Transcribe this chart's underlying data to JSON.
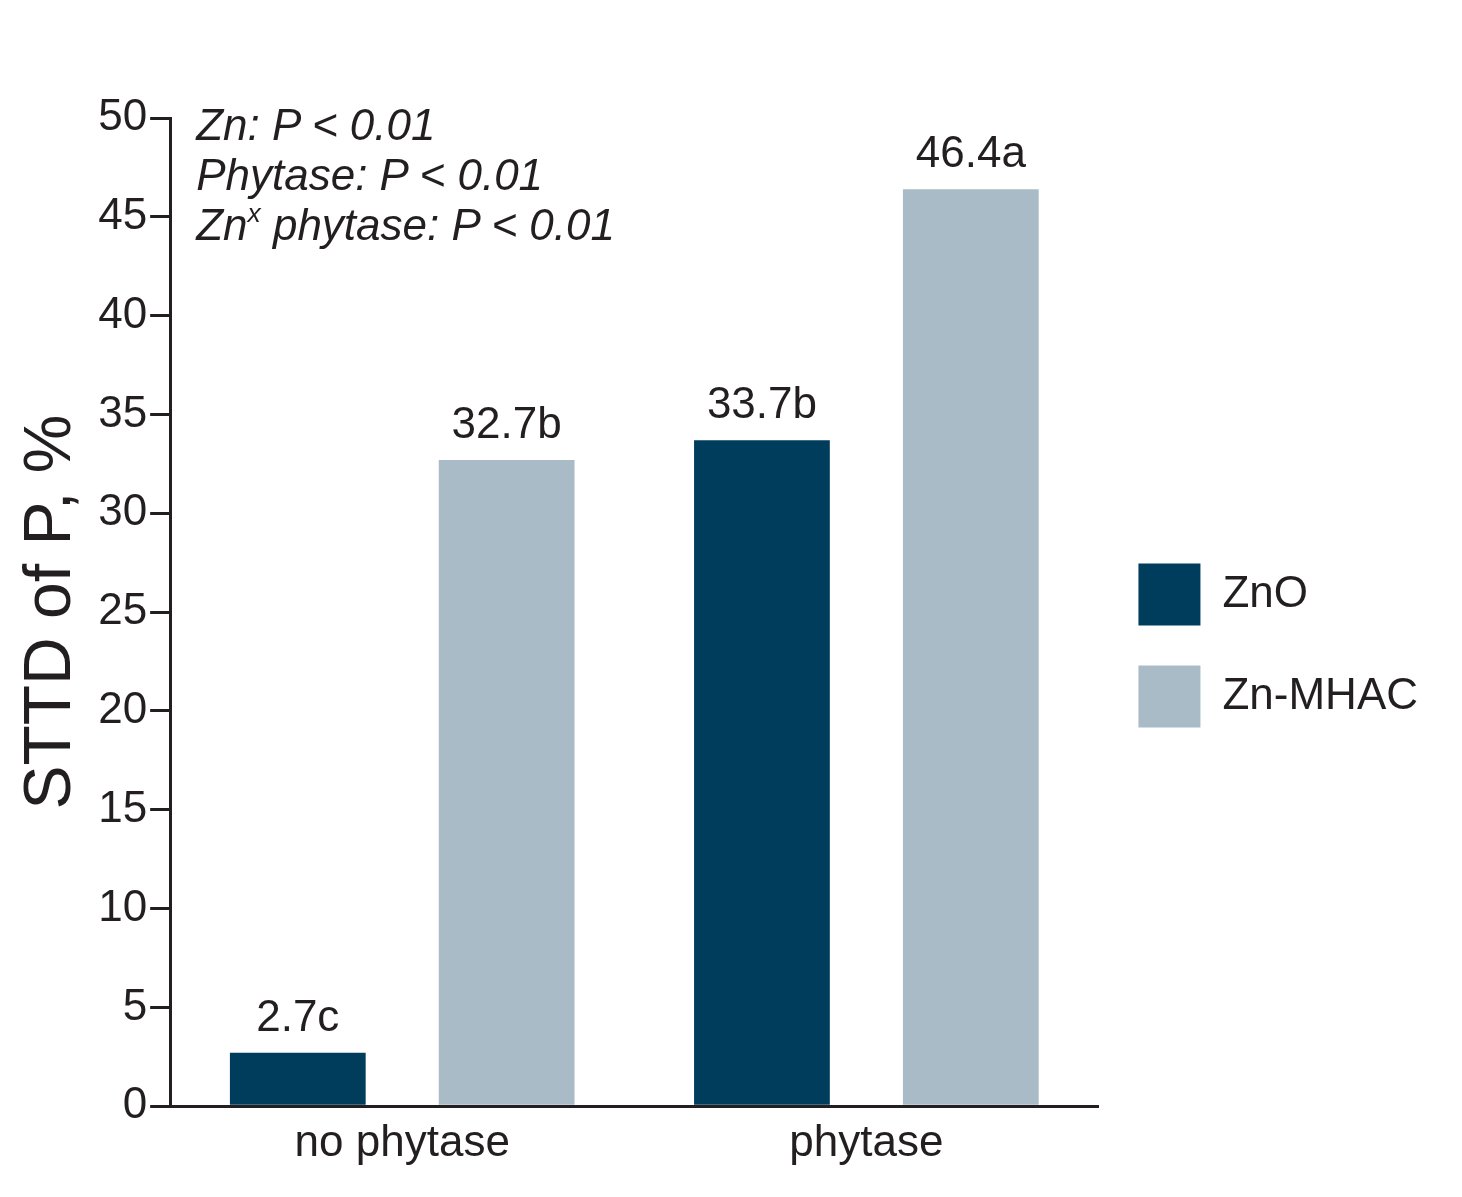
{
  "chart_data": {
    "type": "bar",
    "ylabel": "STTD of P, %",
    "categories": [
      "no phytase",
      "phytase"
    ],
    "series": [
      {
        "name": "ZnO",
        "color": "#003d5c",
        "values": [
          2.7,
          33.7
        ],
        "value_labels": [
          "2.7c",
          "33.7b"
        ]
      },
      {
        "name": "Zn-MHAC",
        "color": "#a8bbc6",
        "values": [
          32.7,
          46.4
        ],
        "value_labels": [
          "32.7b",
          "46.4a"
        ]
      }
    ],
    "ylim": [
      0,
      50
    ],
    "yticks": [
      0,
      5,
      10,
      15,
      20,
      25,
      30,
      35,
      40,
      45,
      50
    ],
    "grid": false,
    "legend": "right",
    "annotations": [
      "Zn: P < 0.01",
      "Phytase: P < 0.01",
      "Zn$^{x}$ phytase: P < 0.01"
    ]
  }
}
